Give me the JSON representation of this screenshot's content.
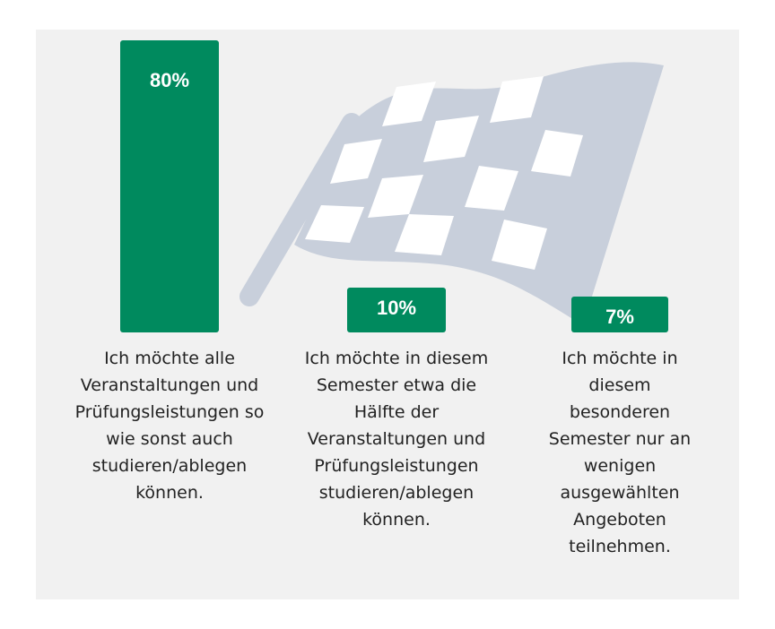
{
  "colors": {
    "panel": "#f1f1f1",
    "bar": "#008a5e",
    "flag": "#c8cfdb",
    "text": "#222222"
  },
  "decoration": {
    "icon": "checkered-flag-icon"
  },
  "chart_data": {
    "type": "bar",
    "title": "",
    "xlabel": "",
    "ylabel": "",
    "ylim": [
      0,
      80
    ],
    "categories": [
      "Ich möchte alle Veranstaltungen und Prüfungsleistungen so wie sonst auch studieren/ablegen können.",
      "Ich möchte in diesem Semester etwa die Hälfte der Veranstaltungen und Prüfungsleistungen studieren/ablegen können.",
      "Ich möchte in diesem besonderen Semester nur an wenigen ausgewählten Angeboten teilnehmen."
    ],
    "values": [
      80,
      10,
      7
    ],
    "value_labels": [
      "80%",
      "10%",
      "7%"
    ],
    "category_lines": [
      [
        "Ich möchte alle",
        "Veranstaltungen und",
        "Prüfungsleistungen so",
        "wie sonst auch",
        "studieren/ablegen",
        "können."
      ],
      [
        "Ich möchte in diesem",
        "Semester etwa die",
        "Hälfte der",
        "Veranstaltungen und",
        "Prüfungsleistungen",
        "studieren/ablegen",
        "können."
      ],
      [
        "Ich möchte in",
        "diesem",
        "besonderen",
        "Semester nur an",
        "wenigen",
        "ausgewählten",
        "Angeboten",
        "teilnehmen."
      ]
    ]
  }
}
